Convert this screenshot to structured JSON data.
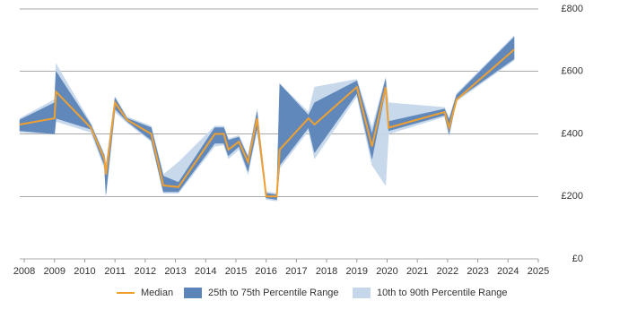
{
  "chart_data": {
    "type": "line",
    "x": [
      2007.85,
      2009.0,
      2009.05,
      2010.2,
      2010.65,
      2010.7,
      2011.0,
      2011.4,
      2012.2,
      2012.6,
      2013.1,
      2014.3,
      2014.6,
      2014.75,
      2015.1,
      2015.4,
      2015.7,
      2016.0,
      2016.35,
      2016.45,
      2017.4,
      2017.6,
      2019.0,
      2019.5,
      2019.95,
      2020.05,
      2021.9,
      2022.05,
      2022.3,
      2024.2
    ],
    "series": [
      {
        "name": "Median",
        "color": "#f0a030",
        "values": [
          430,
          450,
          535,
          420,
          320,
          270,
          500,
          445,
          400,
          235,
          230,
          400,
          400,
          350,
          375,
          310,
          450,
          200,
          200,
          350,
          450,
          430,
          550,
          360,
          550,
          420,
          470,
          420,
          510,
          670
        ]
      },
      {
        "name": "25th to 75th Percentile Range",
        "color": "#5b84b8",
        "low": [
          410,
          400,
          450,
          415,
          300,
          210,
          480,
          440,
          380,
          215,
          215,
          370,
          370,
          330,
          360,
          280,
          420,
          195,
          190,
          300,
          420,
          340,
          530,
          320,
          540,
          410,
          460,
          400,
          510,
          640
        ],
        "high": [
          445,
          500,
          600,
          430,
          330,
          290,
          515,
          450,
          420,
          265,
          245,
          420,
          420,
          380,
          390,
          325,
          470,
          210,
          205,
          560,
          460,
          500,
          570,
          400,
          575,
          440,
          480,
          445,
          525,
          710
        ]
      },
      {
        "name": "10th to 90th Percentile Range",
        "color": "#c6d7ec",
        "low": [
          405,
          400,
          440,
          405,
          290,
          200,
          470,
          435,
          375,
          210,
          210,
          360,
          365,
          320,
          350,
          270,
          410,
          190,
          185,
          290,
          410,
          320,
          520,
          300,
          235,
          400,
          455,
          395,
          505,
          635
        ],
        "high": [
          450,
          510,
          625,
          435,
          335,
          300,
          520,
          455,
          425,
          270,
          310,
          425,
          425,
          385,
          395,
          330,
          480,
          215,
          210,
          560,
          470,
          550,
          575,
          420,
          580,
          500,
          485,
          450,
          530,
          715
        ]
      }
    ],
    "xlim": [
      2007.85,
      2025
    ],
    "xticks": [
      2008,
      2009,
      2010,
      2011,
      2012,
      2013,
      2014,
      2015,
      2016,
      2017,
      2018,
      2019,
      2020,
      2021,
      2022,
      2023,
      2024,
      2025
    ],
    "ylim": [
      0,
      800
    ],
    "yticks": [
      {
        "value": 0,
        "label": "£0"
      },
      {
        "value": 200,
        "label": "£200"
      },
      {
        "value": 400,
        "label": "£400"
      },
      {
        "value": 600,
        "label": "£600"
      },
      {
        "value": 800,
        "label": "£800"
      }
    ],
    "grid": true
  }
}
